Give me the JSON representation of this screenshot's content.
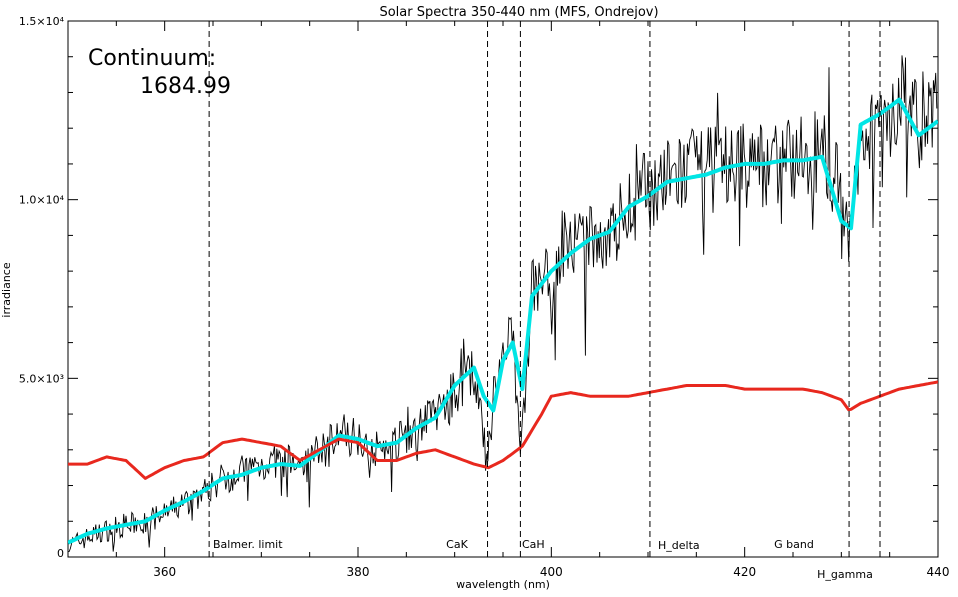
{
  "chart_data": {
    "type": "line",
    "title": "Solar Spectra 350-440 nm (MFS, Ondrejov)",
    "xlabel": "wavelength (nm)",
    "ylabel": "irradiance",
    "xlim": [
      350,
      440
    ],
    "ylim": [
      0,
      15000
    ],
    "x_ticks": [
      360,
      380,
      400,
      420,
      440
    ],
    "x_tick_labels": [
      "360",
      "380",
      "400",
      "420",
      "440"
    ],
    "y_ticks": [
      0,
      5000,
      10000,
      15000
    ],
    "y_tick_labels": [
      "0",
      "5.0×10³",
      "1.0×10⁴",
      "1.5×10⁴"
    ],
    "grid": false,
    "continuum_label": "Continuum:",
    "continuum_value": "1684.99",
    "markers": [
      {
        "x": 364.6,
        "label": "Balmer. limit"
      },
      {
        "x": 393.4,
        "label": "CaK"
      },
      {
        "x": 396.8,
        "label": "CaH"
      },
      {
        "x": 410.2,
        "label": "H_delta"
      },
      {
        "x": 430.8,
        "label": "H_gamma"
      },
      {
        "x": 434.0,
        "label": "G band"
      }
    ],
    "series": [
      {
        "color": "#000000",
        "style": "raw",
        "x": [
          350,
          352,
          354,
          356,
          358,
          360,
          362,
          364,
          366,
          368,
          370,
          372,
          374,
          376,
          378,
          380,
          382,
          384,
          386,
          388,
          390,
          392,
          393.4,
          394,
          396,
          396.8,
          398,
          400,
          402,
          404,
          406,
          408,
          410,
          412,
          414,
          416,
          418,
          420,
          422,
          424,
          426,
          428,
          430,
          430.8,
          432,
          434,
          436,
          438,
          440
        ],
        "y": [
          300,
          550,
          750,
          900,
          950,
          1200,
          1500,
          1800,
          2200,
          2400,
          2600,
          2700,
          2600,
          3000,
          3500,
          3400,
          3000,
          3200,
          3700,
          4000,
          4600,
          5200,
          2500,
          4500,
          6300,
          2800,
          7500,
          8000,
          8600,
          8800,
          9000,
          9800,
          10300,
          10500,
          10800,
          10800,
          10900,
          11000,
          11000,
          11100,
          11200,
          11300,
          10500,
          8300,
          12000,
          12200,
          12800,
          12200,
          12400
        ]
      },
      {
        "color": "#00e5e5",
        "style": "smoothed",
        "x": [
          350,
          352,
          354,
          356,
          358,
          360,
          362,
          364,
          366,
          368,
          370,
          372,
          374,
          376,
          378,
          380,
          382,
          384,
          386,
          388,
          390,
          392,
          393,
          394,
          395,
          396,
          397,
          398,
          400,
          402,
          404,
          406,
          408,
          410,
          412,
          414,
          416,
          418,
          420,
          422,
          424,
          426,
          428,
          430,
          431,
          432,
          434,
          436,
          438,
          440
        ],
        "y": [
          400,
          650,
          800,
          900,
          1000,
          1300,
          1550,
          1850,
          2200,
          2300,
          2500,
          2600,
          2550,
          2950,
          3400,
          3300,
          3100,
          3200,
          3600,
          3900,
          4800,
          5300,
          4500,
          4100,
          5500,
          6000,
          4700,
          7300,
          8000,
          8500,
          8900,
          9100,
          9800,
          10100,
          10500,
          10600,
          10700,
          10900,
          11000,
          11000,
          11100,
          11100,
          11200,
          9400,
          9200,
          12100,
          12400,
          12800,
          11800,
          12200
        ]
      },
      {
        "color": "#e8281e",
        "style": "continuum",
        "x": [
          350,
          352,
          354,
          356,
          358,
          360,
          362,
          364,
          366,
          368,
          370,
          372,
          374,
          376,
          378,
          380,
          382,
          384,
          386,
          388,
          390,
          392,
          393.5,
          395,
          397,
          399,
          400,
          402,
          404,
          406,
          408,
          410,
          412,
          414,
          416,
          418,
          420,
          422,
          424,
          426,
          428,
          430,
          430.8,
          432,
          434,
          436,
          438,
          440
        ],
        "y": [
          2600,
          2600,
          2800,
          2700,
          2200,
          2500,
          2700,
          2800,
          3200,
          3300,
          3200,
          3100,
          2700,
          3000,
          3300,
          3200,
          2700,
          2700,
          2900,
          3000,
          2800,
          2600,
          2500,
          2700,
          3100,
          4000,
          4500,
          4600,
          4500,
          4500,
          4500,
          4600,
          4700,
          4800,
          4800,
          4800,
          4700,
          4700,
          4700,
          4700,
          4600,
          4400,
          4100,
          4300,
          4500,
          4700,
          4800,
          4900
        ]
      }
    ]
  }
}
